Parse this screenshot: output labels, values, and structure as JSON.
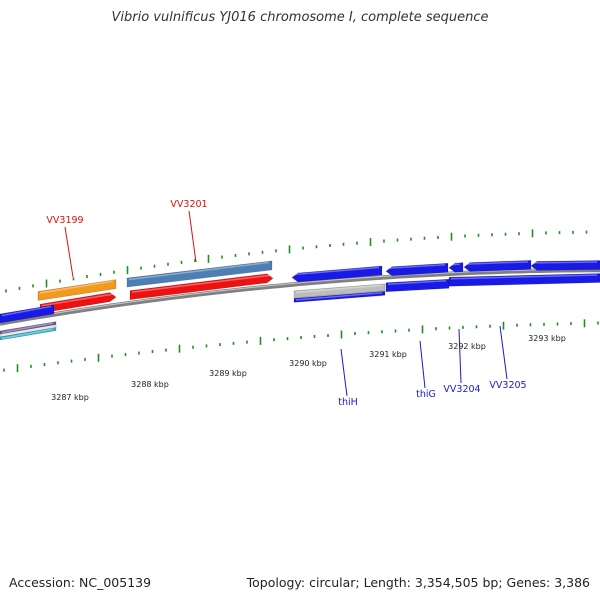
{
  "title": "Vibrio vulnificus YJ016 chromosome I, complete sequence",
  "footer": {
    "accession": "Accession: NC_005139",
    "summary": "Topology: circular; Length: 3,354,505 bp; Genes: 3,386"
  },
  "colors": {
    "backbone": "#808080",
    "tick_green": "#1f8f1f",
    "forward_gene_red": "#ee1111",
    "forward_gene_orange": "#f39a1c",
    "forward_gene_steelblue": "#4d7fb4",
    "reverse_gene_blue": "#1a1ae6",
    "reverse_gene_grey": "#bdbdbd",
    "reverse_gene_cyan": "#28b4d0",
    "label_forward": "#dd1111",
    "label_reverse": "#1a1acc"
  },
  "scale_labels": [
    "3287 kbp",
    "3288 kbp",
    "3289 kbp",
    "3290 kbp",
    "3291 kbp",
    "3292 kbp",
    "3293 kbp"
  ],
  "gene_labels_forward": [
    "VV3199",
    "VV3201"
  ],
  "gene_labels_reverse": [
    "thiH",
    "thiG",
    "VV3204",
    "VV3205"
  ]
}
